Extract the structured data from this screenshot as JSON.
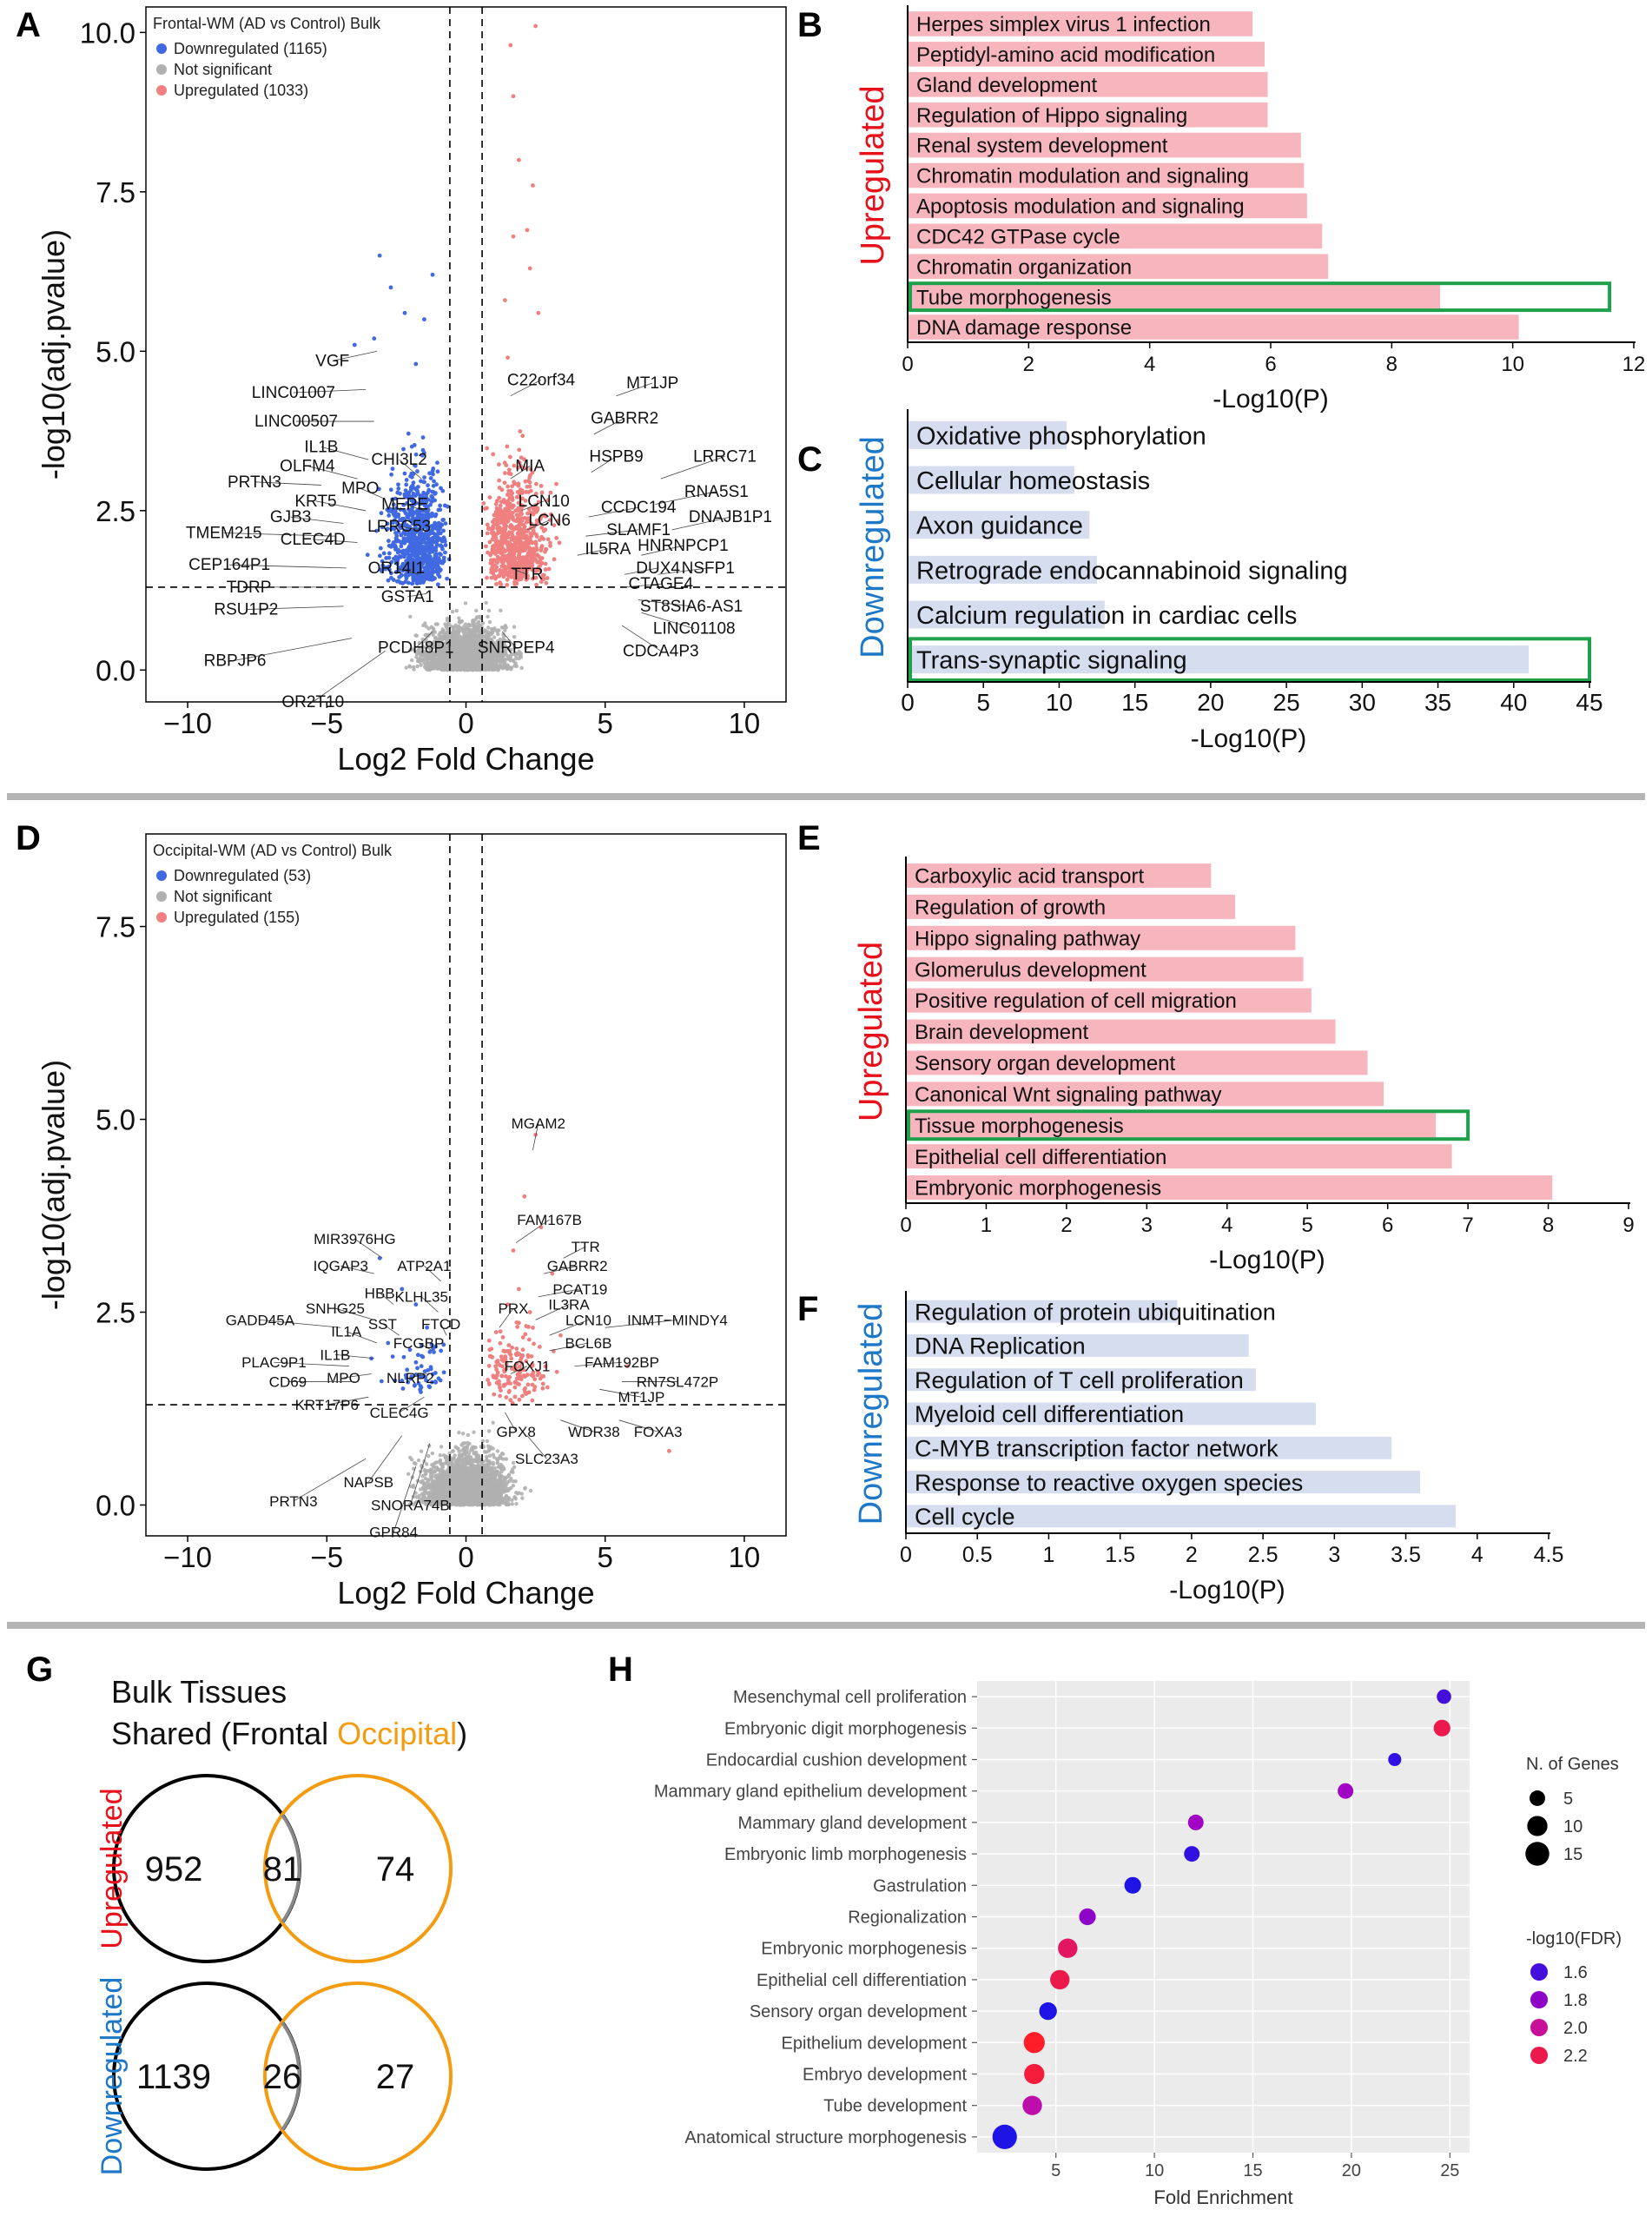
{
  "colors": {
    "up": "#f08080",
    "down": "#4169e1",
    "ns": "#b0b0b0",
    "upbar": "#f7b6be",
    "downbar": "#d6ddef",
    "highlight": "#1fa04a",
    "upword": "#e8101a",
    "downword": "#1e78c8",
    "occipital": "#f39c12",
    "ggbg": "#ebebeb"
  },
  "panel_letters": [
    "A",
    "B",
    "C",
    "D",
    "E",
    "F",
    "G",
    "H"
  ],
  "chart_data": [
    {
      "id": "A",
      "type": "scatter",
      "title": "Frontal-WM (AD vs Control) Bulk",
      "legend": [
        {
          "label": "Downregulated (1165)",
          "color": "#4169e1"
        },
        {
          "label": "Not significant",
          "color": "#b0b0b0"
        },
        {
          "label": "Upregulated (1033)",
          "color": "#f08080"
        }
      ],
      "xlabel": "Log2 Fold Change",
      "ylabel": "-log10(adj.pvalue)",
      "xlim": [
        -11.5,
        11.5
      ],
      "ylim": [
        -0.5,
        10.4
      ],
      "xticks": [
        -10,
        -5,
        0,
        5,
        10
      ],
      "xtick_labels": [
        "−10",
        "−5",
        "0",
        "5",
        "10"
      ],
      "yticks": [
        0,
        2.5,
        5,
        7.5,
        10
      ],
      "ytick_labels": [
        "0.0",
        "2.5",
        "5.0",
        "7.5",
        "10.0"
      ],
      "vlines": [
        -0.58,
        0.58
      ],
      "hline": 1.3,
      "labels": [
        {
          "t": "VGF",
          "x": -4.8,
          "y": 4.85,
          "px": -3.2,
          "py": 5.0
        },
        {
          "t": "LINC01007",
          "x": -6.2,
          "y": 4.35,
          "px": -3.6,
          "py": 4.4
        },
        {
          "t": "LINC00507",
          "x": -6.1,
          "y": 3.9,
          "px": -3.3,
          "py": 3.9
        },
        {
          "t": "IL1B",
          "x": -5.2,
          "y": 3.5,
          "px": -3.5,
          "py": 3.3
        },
        {
          "t": "OLFM4",
          "x": -5.7,
          "y": 3.2,
          "px": -3.9,
          "py": 3.0
        },
        {
          "t": "CHI3L2",
          "x": -2.4,
          "y": 3.3,
          "px": -1.6,
          "py": 3.0
        },
        {
          "t": "PRTN3",
          "x": -7.6,
          "y": 2.95,
          "px": -5.2,
          "py": 2.9
        },
        {
          "t": "MPO",
          "x": -3.8,
          "y": 2.85,
          "px": -3.0,
          "py": 2.7
        },
        {
          "t": "MEPE",
          "x": -2.2,
          "y": 2.6,
          "px": -1.5,
          "py": 2.5
        },
        {
          "t": "KRT5",
          "x": -5.4,
          "y": 2.65,
          "px": -3.6,
          "py": 2.5
        },
        {
          "t": "GJB3",
          "x": -6.3,
          "y": 2.4,
          "px": -4.4,
          "py": 2.3
        },
        {
          "t": "LRRC53",
          "x": -2.4,
          "y": 2.25,
          "px": -1.6,
          "py": 2.2
        },
        {
          "t": "TMEM215",
          "x": -8.7,
          "y": 2.15,
          "px": -4.7,
          "py": 2.1
        },
        {
          "t": "CLEC4D",
          "x": -5.5,
          "y": 2.05,
          "px": -3.9,
          "py": 2.0
        },
        {
          "t": "CEP164P1",
          "x": -8.5,
          "y": 1.65,
          "px": -4.3,
          "py": 1.6
        },
        {
          "t": "OR14I1",
          "x": -2.5,
          "y": 1.6,
          "px": -1.7,
          "py": 1.5
        },
        {
          "t": "TDRP",
          "x": -7.8,
          "y": 1.3,
          "px": -4.5,
          "py": 1.3
        },
        {
          "t": "GSTA1",
          "x": -2.1,
          "y": 1.15,
          "px": -1.4,
          "py": 1.2
        },
        {
          "t": "RSU1P2",
          "x": -7.9,
          "y": 0.95,
          "px": -4.4,
          "py": 1.0
        },
        {
          "t": "RBPJP6",
          "x": -8.3,
          "y": 0.15,
          "px": -4.1,
          "py": 0.5
        },
        {
          "t": "PCDH8P1",
          "x": -1.8,
          "y": 0.35,
          "px": -1.2,
          "py": 0.6
        },
        {
          "t": "OR2T10",
          "x": -5.5,
          "y": -0.5,
          "px": -2.9,
          "py": 0.3
        },
        {
          "t": "C22orf34",
          "x": 2.7,
          "y": 4.55,
          "px": 1.6,
          "py": 4.3
        },
        {
          "t": "MT1JP",
          "x": 6.7,
          "y": 4.5,
          "px": 5.4,
          "py": 4.3
        },
        {
          "t": "GABRR2",
          "x": 5.7,
          "y": 3.95,
          "px": 4.6,
          "py": 3.7
        },
        {
          "t": "HSPB9",
          "x": 5.4,
          "y": 3.35,
          "px": 4.5,
          "py": 3.1
        },
        {
          "t": "LRRC71",
          "x": 9.3,
          "y": 3.35,
          "px": 7.0,
          "py": 3.0
        },
        {
          "t": "MIA",
          "x": 2.3,
          "y": 3.2,
          "px": 1.6,
          "py": 3.0
        },
        {
          "t": "RNA5S1",
          "x": 9.0,
          "y": 2.8,
          "px": 6.8,
          "py": 2.6
        },
        {
          "t": "LCN10",
          "x": 2.8,
          "y": 2.65,
          "px": 2.0,
          "py": 2.5
        },
        {
          "t": "CCDC194",
          "x": 6.2,
          "y": 2.55,
          "px": 4.4,
          "py": 2.4
        },
        {
          "t": "LCN6",
          "x": 3.0,
          "y": 2.35,
          "px": 2.2,
          "py": 2.2
        },
        {
          "t": "SLAMF1",
          "x": 6.2,
          "y": 2.2,
          "px": 4.3,
          "py": 2.1
        },
        {
          "t": "DNAJB1P1",
          "x": 9.5,
          "y": 2.4,
          "px": 7.4,
          "py": 2.2
        },
        {
          "t": "IL5RA",
          "x": 5.1,
          "y": 1.9,
          "px": 4.0,
          "py": 1.8
        },
        {
          "t": "HNRNPCP1",
          "x": 7.8,
          "y": 1.95,
          "px": 6.3,
          "py": 1.8
        },
        {
          "t": "TTR",
          "x": 2.2,
          "y": 1.5,
          "px": 1.6,
          "py": 1.6
        },
        {
          "t": "DUX4",
          "x": 6.9,
          "y": 1.6,
          "px": 5.7,
          "py": 1.5
        },
        {
          "t": "NSFP1",
          "x": 8.7,
          "y": 1.6,
          "px": 6.9,
          "py": 1.5
        },
        {
          "t": "CTAGE4",
          "x": 7.0,
          "y": 1.35,
          "px": 5.7,
          "py": 1.3
        },
        {
          "t": "ST8SIA6-AS1",
          "x": 8.1,
          "y": 1.0,
          "px": 6.2,
          "py": 1.1
        },
        {
          "t": "SNRPEP4",
          "x": 1.8,
          "y": 0.35,
          "px": 1.3,
          "py": 0.6
        },
        {
          "t": "LINC01108",
          "x": 8.2,
          "y": 0.65,
          "px": 6.3,
          "py": 0.9
        },
        {
          "t": "CDCA4P3",
          "x": 7.0,
          "y": 0.3,
          "px": 5.6,
          "py": 0.7
        }
      ]
    },
    {
      "id": "B",
      "type": "bar",
      "orientation": "horizontal",
      "side": "Upregulated",
      "categories": [
        "Herpes simplex virus 1 infection",
        "Peptidyl-amino acid modification",
        "Gland development",
        "Regulation of Hippo signaling",
        "Renal system development",
        "Chromatin modulation and signaling",
        "Apoptosis modulation and signaling",
        "CDC42 GTPase cycle",
        "Chromatin organization",
        "Tube morphogenesis",
        "DNA damage response"
      ],
      "values": [
        5.7,
        5.9,
        5.95,
        5.95,
        6.5,
        6.55,
        6.6,
        6.85,
        6.95,
        8.8,
        10.1
      ],
      "highlight": "Tube morphogenesis",
      "highlight_extent": 11.6,
      "xlabel": "-Log10(P)",
      "xlim": [
        0,
        12
      ],
      "xticks": [
        0,
        2,
        4,
        6,
        8,
        10,
        12
      ]
    },
    {
      "id": "C",
      "type": "bar",
      "orientation": "horizontal",
      "side": "Downregulated",
      "categories": [
        "Oxidative phosphorylation",
        "Cellular homeostasis",
        "Axon guidance",
        "Retrograde endocannabinoid signaling",
        "Calcium regulation in cardiac cells",
        "Trans-synaptic signaling"
      ],
      "values": [
        10.5,
        11,
        12,
        12.5,
        13,
        41
      ],
      "highlight": "Trans-synaptic signaling",
      "highlight_extent": 45,
      "xlabel": "-Log10(P)",
      "xlim": [
        0,
        45
      ],
      "xticks": [
        0,
        5,
        10,
        15,
        20,
        25,
        30,
        35,
        40,
        45
      ]
    },
    {
      "id": "D",
      "type": "scatter",
      "title": "Occipital-WM (AD vs Control) Bulk",
      "legend": [
        {
          "label": "Downregulated (53)",
          "color": "#4169e1"
        },
        {
          "label": "Not significant",
          "color": "#b0b0b0"
        },
        {
          "label": "Upregulated (155)",
          "color": "#f08080"
        }
      ],
      "xlabel": "Log2 Fold Change",
      "ylabel": "-log10(adj.pvalue)",
      "xlim": [
        -11.5,
        11.5
      ],
      "ylim": [
        -0.4,
        8.7
      ],
      "xticks": [
        -10,
        -5,
        0,
        5,
        10
      ],
      "xtick_labels": [
        "−10",
        "−5",
        "0",
        "5",
        "10"
      ],
      "yticks": [
        0,
        2.5,
        5,
        7.5
      ],
      "ytick_labels": [
        "0.0",
        "2.5",
        "5.0",
        "7.5"
      ],
      "vlines": [
        -0.58,
        0.58
      ],
      "hline": 1.3,
      "labels": [
        {
          "t": "MGAM2",
          "x": 2.6,
          "y": 4.95,
          "px": 2.4,
          "py": 4.6
        },
        {
          "t": "FAM167B",
          "x": 3.0,
          "y": 3.7,
          "px": 1.8,
          "py": 3.4
        },
        {
          "t": "TTR",
          "x": 4.3,
          "y": 3.35,
          "px": 3.5,
          "py": 3.2
        },
        {
          "t": "GABRR2",
          "x": 4.0,
          "y": 3.1,
          "px": 2.8,
          "py": 3.0
        },
        {
          "t": "PCAT19",
          "x": 4.1,
          "y": 2.8,
          "px": 2.6,
          "py": 2.7
        },
        {
          "t": "PRX",
          "x": 1.7,
          "y": 2.55,
          "px": 1.2,
          "py": 2.3
        },
        {
          "t": "IL3RA",
          "x": 3.7,
          "y": 2.6,
          "px": 2.5,
          "py": 2.4
        },
        {
          "t": "INMT−MINDY4",
          "x": 7.6,
          "y": 2.4,
          "px": 5.0,
          "py": 2.3
        },
        {
          "t": "LCN10",
          "x": 4.4,
          "y": 2.4,
          "px": 3.0,
          "py": 2.2
        },
        {
          "t": "BCL6B",
          "x": 4.4,
          "y": 2.1,
          "px": 3.0,
          "py": 2.0
        },
        {
          "t": "FAM192BP",
          "x": 5.6,
          "y": 1.85,
          "px": 3.9,
          "py": 1.8
        },
        {
          "t": "FOXJ1",
          "x": 2.2,
          "y": 1.8,
          "px": 1.6,
          "py": 1.7
        },
        {
          "t": "RN7SL472P",
          "x": 7.6,
          "y": 1.6,
          "px": 5.6,
          "py": 1.6
        },
        {
          "t": "MT1JP",
          "x": 6.3,
          "y": 1.4,
          "px": 4.8,
          "py": 1.5
        },
        {
          "t": "GPX8",
          "x": 1.8,
          "y": 0.95,
          "px": 1.4,
          "py": 1.2
        },
        {
          "t": "WDR38",
          "x": 4.6,
          "y": 0.95,
          "px": 3.4,
          "py": 1.1
        },
        {
          "t": "FOXA3",
          "x": 6.9,
          "y": 0.95,
          "px": 5.5,
          "py": 1.1
        },
        {
          "t": "SLC23A3",
          "x": 2.9,
          "y": 0.6,
          "px": 2.2,
          "py": 0.9
        },
        {
          "t": "MIR3976HG",
          "x": -4.0,
          "y": 3.45,
          "px": -3.0,
          "py": 3.2
        },
        {
          "t": "IQGAP3",
          "x": -4.5,
          "y": 3.1,
          "px": -3.3,
          "py": 3.0
        },
        {
          "t": "ATP2A1",
          "x": -1.5,
          "y": 3.1,
          "px": -0.9,
          "py": 2.9
        },
        {
          "t": "HBB",
          "x": -3.1,
          "y": 2.75,
          "px": -2.6,
          "py": 2.6
        },
        {
          "t": "KLHL35",
          "x": -1.6,
          "y": 2.7,
          "px": -1.0,
          "py": 2.5
        },
        {
          "t": "SNHG25",
          "x": -4.7,
          "y": 2.55,
          "px": -3.3,
          "py": 2.4
        },
        {
          "t": "GADD45A",
          "x": -7.4,
          "y": 2.4,
          "px": -4.5,
          "py": 2.3
        },
        {
          "t": "SST",
          "x": -3.0,
          "y": 2.35,
          "px": -2.4,
          "py": 2.2
        },
        {
          "t": "FTCD",
          "x": -0.9,
          "y": 2.35,
          "px": -0.7,
          "py": 2.2
        },
        {
          "t": "FCGBP",
          "x": -1.7,
          "y": 2.1,
          "px": -1.2,
          "py": 2.0
        },
        {
          "t": "IL1A",
          "x": -4.3,
          "y": 2.25,
          "px": -3.2,
          "py": 2.1
        },
        {
          "t": "IL1B",
          "x": -4.7,
          "y": 1.95,
          "px": -3.3,
          "py": 1.9
        },
        {
          "t": "PLAC9P1",
          "x": -6.9,
          "y": 1.85,
          "px": -4.2,
          "py": 1.8
        },
        {
          "t": "MPO",
          "x": -4.4,
          "y": 1.65,
          "px": -3.4,
          "py": 1.7
        },
        {
          "t": "NLRP2",
          "x": -2.0,
          "y": 1.65,
          "px": -1.4,
          "py": 1.7
        },
        {
          "t": "CD69",
          "x": -6.4,
          "y": 1.6,
          "px": -4.0,
          "py": 1.6
        },
        {
          "t": "KRT17P6",
          "x": -5.0,
          "y": 1.3,
          "px": -3.5,
          "py": 1.4
        },
        {
          "t": "CLEC4G",
          "x": -2.4,
          "y": 1.2,
          "px": -1.5,
          "py": 1.4
        },
        {
          "t": "NAPSB",
          "x": -3.5,
          "y": 0.3,
          "px": -2.3,
          "py": 0.9
        },
        {
          "t": "PRTN3",
          "x": -6.2,
          "y": 0.05,
          "px": -3.6,
          "py": 0.6
        },
        {
          "t": "SNORA74B",
          "x": -2.0,
          "y": 0.0,
          "px": -1.3,
          "py": 0.8
        },
        {
          "t": "GPR84",
          "x": -2.6,
          "y": -0.35,
          "px": -1.8,
          "py": 0.5
        }
      ]
    },
    {
      "id": "E",
      "type": "bar",
      "orientation": "horizontal",
      "side": "Upregulated",
      "categories": [
        "Carboxylic acid transport",
        "Regulation of growth",
        "Hippo signaling pathway",
        "Glomerulus development",
        "Positive regulation of cell migration",
        "Brain development",
        "Sensory organ development",
        "Canonical Wnt signaling pathway",
        "Tissue morphogenesis",
        "Epithelial cell differentiation",
        "Embryonic morphogenesis"
      ],
      "values": [
        3.8,
        4.1,
        4.85,
        4.95,
        5.05,
        5.35,
        5.75,
        5.95,
        6.6,
        6.8,
        8.05
      ],
      "highlight": "Tissue morphogenesis",
      "highlight_extent": 7.0,
      "xlabel": "-Log10(P)",
      "xlim": [
        0,
        9
      ],
      "xticks": [
        0,
        1,
        2,
        3,
        4,
        5,
        6,
        7,
        8,
        9
      ]
    },
    {
      "id": "F",
      "type": "bar",
      "orientation": "horizontal",
      "side": "Downregulated",
      "categories": [
        "Regulation of protein ubiquitination",
        "DNA Replication",
        "Regulation of T cell proliferation",
        "Myeloid cell differentiation",
        "C-MYB transcription factor network",
        "Response to reactive oxygen species",
        "Cell cycle"
      ],
      "values": [
        1.9,
        2.4,
        2.45,
        2.87,
        3.4,
        3.6,
        3.85
      ],
      "xlabel": "-Log10(P)",
      "xlim": [
        0,
        4.5
      ],
      "xticks": [
        0,
        0.5,
        1,
        1.5,
        2,
        2.5,
        3,
        3.5,
        4,
        4.5
      ]
    },
    {
      "id": "G",
      "type": "venn",
      "title_line1": "Bulk Tissues",
      "title_line2_prefix": "Shared (Frontal ",
      "title_line2_occipital": "Occipital",
      "title_line2_suffix": ")",
      "sets": [
        {
          "group": "Upregulated",
          "frontal_only": 952,
          "shared": 81,
          "occipital_only": 74
        },
        {
          "group": "Downregulated",
          "frontal_only": 1139,
          "shared": 26,
          "occipital_only": 27
        }
      ]
    },
    {
      "id": "H",
      "type": "scatter",
      "categories": [
        "Mesenchymal cell proliferation",
        "Embryonic digit morphogenesis",
        "Endocardial cushion development",
        "Mammary gland epithelium development",
        "Mammary gland development",
        "Embryonic limb morphogenesis",
        "Gastrulation",
        "Regionalization",
        "Embryonic morphogenesis",
        "Epithelial cell differentiation",
        "Sensory organ development",
        "Epithelium development",
        "Embryo development",
        "Tube development",
        "Anatomical structure morphogenesis"
      ],
      "fold_enrichment": [
        24.7,
        24.6,
        22.2,
        19.7,
        12.1,
        11.9,
        8.9,
        6.6,
        5.6,
        5.2,
        4.6,
        3.9,
        3.9,
        3.8,
        2.4
      ],
      "n_genes": [
        4,
        6,
        3,
        5,
        5,
        5,
        6,
        6,
        9,
        9,
        7,
        11,
        10,
        9,
        16
      ],
      "neg_log10_fdr": [
        1.6,
        2.2,
        1.55,
        1.85,
        1.85,
        1.55,
        1.5,
        1.8,
        2.15,
        2.2,
        1.5,
        2.3,
        2.25,
        1.95,
        1.45
      ],
      "xlabel": "Fold Enrichment",
      "xlim": [
        1,
        26
      ],
      "xticks": [
        5,
        10,
        15,
        20,
        25
      ],
      "size_legend_title": "N. of Genes",
      "size_legend_values": [
        5,
        10,
        15
      ],
      "color_legend_title": "-log10(FDR)",
      "color_legend_values": [
        "1.6",
        "1.8",
        "2.0",
        "2.2"
      ],
      "color_range": [
        1.5,
        2.3
      ]
    }
  ]
}
